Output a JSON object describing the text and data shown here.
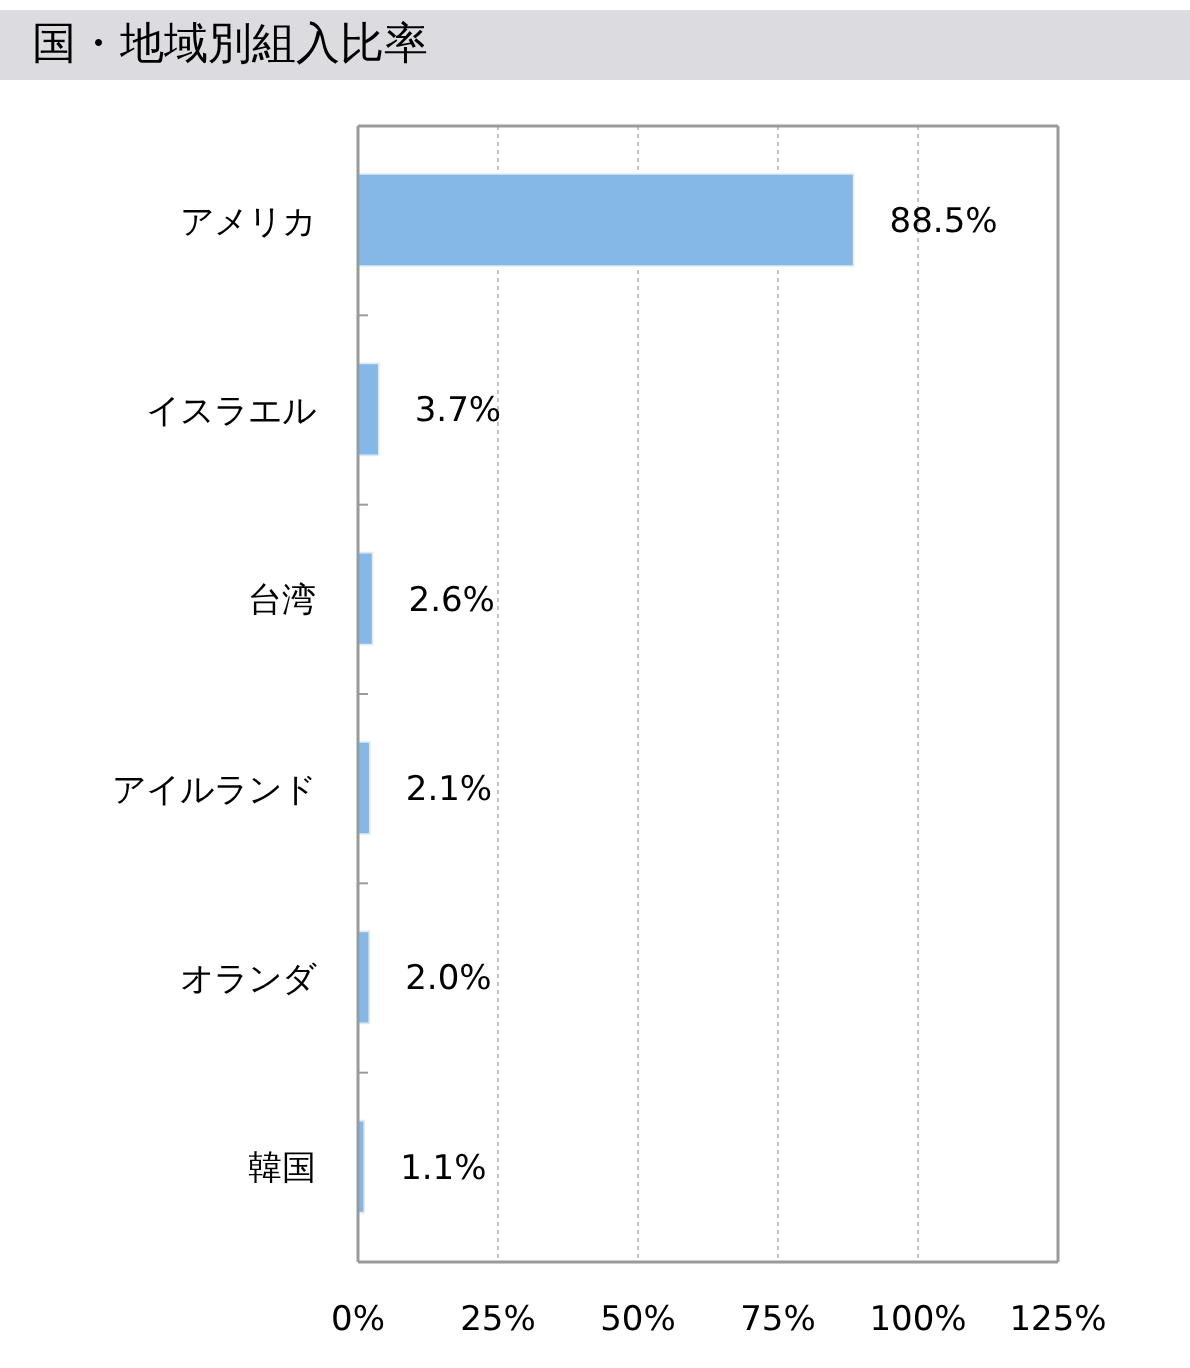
{
  "chart_data": {
    "type": "bar",
    "title": "国・地域別組入比率",
    "orientation": "horizontal",
    "categories": [
      "アメリカ",
      "イスラエル",
      "台湾",
      "アイルランド",
      "オランダ",
      "韓国"
    ],
    "values": [
      88.5,
      3.7,
      2.6,
      2.1,
      2.0,
      1.1
    ],
    "color": "#85b8e6",
    "value_labels": [
      "88.5%",
      "3.7%",
      "2.6%",
      "2.1%",
      "2.0%",
      "1.1%"
    ],
    "xlim": [
      0,
      125
    ],
    "xticks": [
      {
        "value": 0,
        "label": "0%"
      },
      {
        "value": 25,
        "label": "25%"
      },
      {
        "value": 50,
        "label": "50%"
      },
      {
        "value": 75,
        "label": "75%"
      },
      {
        "value": 100,
        "label": "100%"
      },
      {
        "value": 125,
        "label": "125%"
      }
    ],
    "grid": "x"
  }
}
